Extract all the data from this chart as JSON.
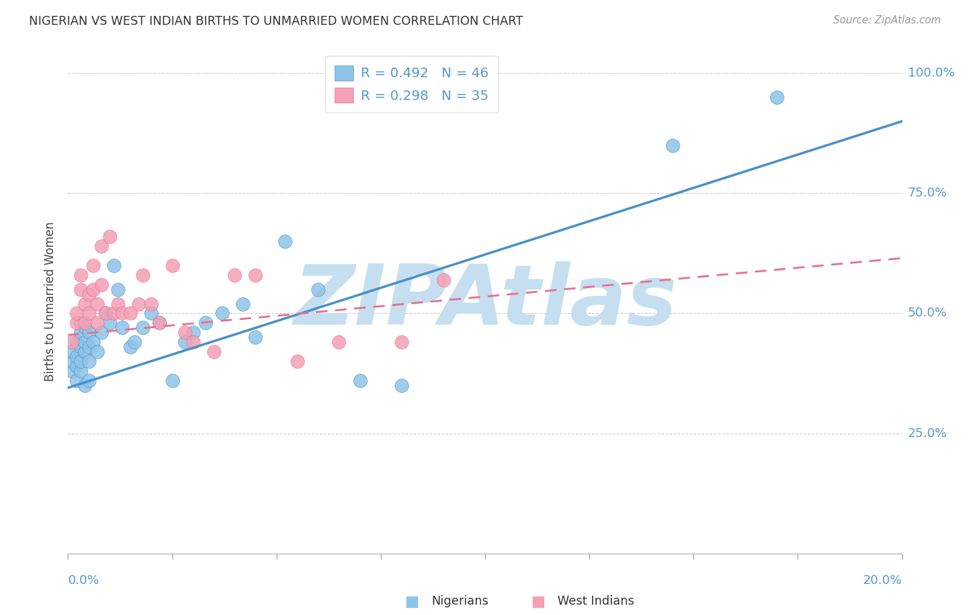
{
  "title": "NIGERIAN VS WEST INDIAN BIRTHS TO UNMARRIED WOMEN CORRELATION CHART",
  "source": "Source: ZipAtlas.com",
  "ylabel": "Births to Unmarried Women",
  "ytick_labels": [
    "100.0%",
    "75.0%",
    "50.0%",
    "25.0%"
  ],
  "ytick_vals": [
    1.0,
    0.75,
    0.5,
    0.25
  ],
  "legend_R1": "R = 0.492",
  "legend_N1": "N = 46",
  "legend_R2": "R = 0.298",
  "legend_N2": "N = 35",
  "color_nigerian": "#8ec4e8",
  "color_westindian": "#f4a0b5",
  "color_line_nigerian": "#4a90c8",
  "color_line_westindian": "#e87090",
  "color_axis_label": "#5599cc",
  "color_title": "#333333",
  "watermark_color": "#c5dff0",
  "nigerian_x": [
    0.001,
    0.001,
    0.001,
    0.002,
    0.002,
    0.002,
    0.002,
    0.003,
    0.003,
    0.003,
    0.003,
    0.003,
    0.004,
    0.004,
    0.004,
    0.004,
    0.005,
    0.005,
    0.005,
    0.005,
    0.006,
    0.007,
    0.008,
    0.009,
    0.01,
    0.011,
    0.012,
    0.013,
    0.015,
    0.016,
    0.018,
    0.02,
    0.022,
    0.025,
    0.028,
    0.03,
    0.033,
    0.037,
    0.042,
    0.045,
    0.052,
    0.06,
    0.07,
    0.08,
    0.145,
    0.17
  ],
  "nigerian_y": [
    0.38,
    0.4,
    0.42,
    0.36,
    0.39,
    0.41,
    0.44,
    0.38,
    0.4,
    0.43,
    0.46,
    0.48,
    0.35,
    0.42,
    0.44,
    0.47,
    0.36,
    0.4,
    0.43,
    0.46,
    0.44,
    0.42,
    0.46,
    0.5,
    0.48,
    0.6,
    0.55,
    0.47,
    0.43,
    0.44,
    0.47,
    0.5,
    0.48,
    0.36,
    0.44,
    0.46,
    0.48,
    0.5,
    0.52,
    0.45,
    0.65,
    0.55,
    0.36,
    0.35,
    0.85,
    0.95
  ],
  "westindian_x": [
    0.001,
    0.002,
    0.002,
    0.003,
    0.003,
    0.004,
    0.004,
    0.005,
    0.005,
    0.006,
    0.006,
    0.007,
    0.007,
    0.008,
    0.008,
    0.009,
    0.01,
    0.011,
    0.012,
    0.013,
    0.015,
    0.017,
    0.018,
    0.02,
    0.022,
    0.025,
    0.028,
    0.03,
    0.035,
    0.04,
    0.045,
    0.055,
    0.065,
    0.08,
    0.09
  ],
  "westindian_y": [
    0.44,
    0.48,
    0.5,
    0.55,
    0.58,
    0.48,
    0.52,
    0.5,
    0.54,
    0.55,
    0.6,
    0.48,
    0.52,
    0.64,
    0.56,
    0.5,
    0.66,
    0.5,
    0.52,
    0.5,
    0.5,
    0.52,
    0.58,
    0.52,
    0.48,
    0.6,
    0.46,
    0.44,
    0.42,
    0.58,
    0.58,
    0.4,
    0.44,
    0.44,
    0.57
  ],
  "nig_trendline_x": [
    0.0,
    0.2
  ],
  "nig_trendline_y": [
    0.345,
    0.9
  ],
  "wi_trendline_x": [
    0.0,
    0.2
  ],
  "wi_trendline_y": [
    0.455,
    0.615
  ],
  "xlim": [
    0.0,
    0.2
  ],
  "ylim": [
    0.0,
    1.05
  ],
  "xticks": [
    0.0,
    0.025,
    0.05,
    0.075,
    0.1,
    0.125,
    0.15,
    0.175,
    0.2
  ]
}
